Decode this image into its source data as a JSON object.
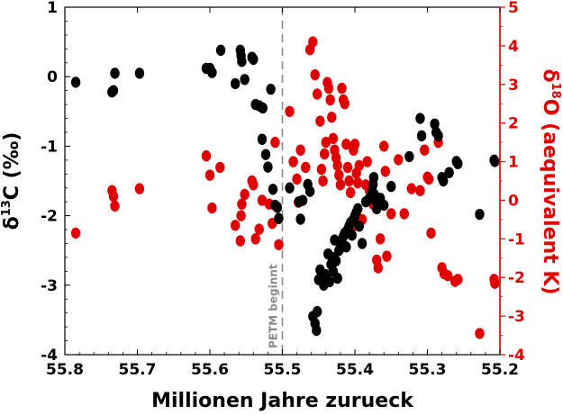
{
  "chart_data": {
    "type": "scatter",
    "xlabel": "Millionen Jahre zurueck",
    "xlim": [
      55.8,
      55.2
    ],
    "x_ticks": [
      "55.8",
      "55.7",
      "55.6",
      "55.5",
      "55.4",
      "55.3",
      "55.2"
    ],
    "y_left": {
      "label_main": "δ",
      "label_sup": "13",
      "label_rest": "C (‰)",
      "ylim": [
        -4,
        1
      ],
      "ticks": [
        "1",
        "0",
        "-1",
        "-2",
        "-3",
        "-4"
      ],
      "color": "#000000"
    },
    "y_right": {
      "label_main": "δ",
      "label_sup": "18",
      "label_rest": "O (aequivalent K)",
      "ylim": [
        -4,
        5
      ],
      "ticks": [
        "5",
        "4",
        "3",
        "2",
        "1",
        "0",
        "-1",
        "-2",
        "-3",
        "-4"
      ],
      "color": "#e00000"
    },
    "annotation": {
      "text": "PETM beginnt",
      "x": 55.5
    },
    "grid": false,
    "series": [
      {
        "axis": "left",
        "color": "#000000",
        "points": [
          [
            55.785,
            -0.08
          ],
          [
            55.735,
            -0.22
          ],
          [
            55.733,
            -0.2
          ],
          [
            55.731,
            0.05
          ],
          [
            55.697,
            0.05
          ],
          [
            55.605,
            0.12
          ],
          [
            55.6,
            0.12
          ],
          [
            55.597,
            0.06
          ],
          [
            55.585,
            0.38
          ],
          [
            55.565,
            -0.1
          ],
          [
            55.558,
            0.38
          ],
          [
            55.557,
            0.3
          ],
          [
            55.556,
            0.22
          ],
          [
            55.552,
            -0.04
          ],
          [
            55.542,
            0.28
          ],
          [
            55.54,
            0.25
          ],
          [
            55.537,
            -0.4
          ],
          [
            55.532,
            -0.42
          ],
          [
            55.528,
            -0.9
          ],
          [
            55.527,
            -0.45
          ],
          [
            55.523,
            -1.12
          ],
          [
            55.52,
            -1.3
          ],
          [
            55.516,
            -0.18
          ],
          [
            55.513,
            -1.62
          ],
          [
            55.51,
            -1.85
          ],
          [
            55.507,
            -1.88
          ],
          [
            55.505,
            -2.04
          ],
          [
            55.49,
            -1.6
          ],
          [
            55.477,
            -1.8
          ],
          [
            55.475,
            -2.05
          ],
          [
            55.472,
            -1.78
          ],
          [
            55.465,
            -1.55
          ],
          [
            55.462,
            -1.65
          ],
          [
            55.458,
            -3.45
          ],
          [
            55.455,
            -3.55
          ],
          [
            55.453,
            -3.65
          ],
          [
            55.452,
            -3.38
          ],
          [
            55.45,
            -2.92
          ],
          [
            55.448,
            -2.78
          ],
          [
            55.445,
            -2.9
          ],
          [
            55.443,
            -3.0
          ],
          [
            55.44,
            -2.85
          ],
          [
            55.437,
            -2.55
          ],
          [
            55.435,
            -2.95
          ],
          [
            55.433,
            -2.7
          ],
          [
            55.431,
            -2.6
          ],
          [
            55.43,
            -2.8
          ],
          [
            55.428,
            -2.35
          ],
          [
            55.426,
            -2.65
          ],
          [
            55.424,
            -2.9
          ],
          [
            55.422,
            -2.5
          ],
          [
            55.42,
            -2.4
          ],
          [
            55.418,
            -2.35
          ],
          [
            55.416,
            -2.3
          ],
          [
            55.414,
            -2.25
          ],
          [
            55.412,
            -2.45
          ],
          [
            55.41,
            -2.2
          ],
          [
            55.408,
            -2.15
          ],
          [
            55.406,
            -2.1
          ],
          [
            55.404,
            -2.28
          ],
          [
            55.402,
            -2.05
          ],
          [
            55.4,
            -2.0
          ],
          [
            55.398,
            -1.95
          ],
          [
            55.396,
            -1.9
          ],
          [
            55.394,
            -2.15
          ],
          [
            55.39,
            -2.4
          ],
          [
            55.385,
            -1.8
          ],
          [
            55.38,
            -1.75
          ],
          [
            55.376,
            -1.65
          ],
          [
            55.375,
            -1.55
          ],
          [
            55.374,
            -1.45
          ],
          [
            55.373,
            -1.7
          ],
          [
            55.372,
            -1.78
          ],
          [
            55.37,
            -1.9
          ],
          [
            55.365,
            -1.75
          ],
          [
            55.36,
            -1.85
          ],
          [
            55.35,
            -1.58
          ],
          [
            55.325,
            -1.15
          ],
          [
            55.31,
            -0.6
          ],
          [
            55.308,
            -0.85
          ],
          [
            55.29,
            -0.68
          ],
          [
            55.288,
            -0.8
          ],
          [
            55.285,
            -0.85
          ],
          [
            55.28,
            -1.45
          ],
          [
            55.278,
            -1.5
          ],
          [
            55.27,
            -1.38
          ],
          [
            55.26,
            -1.22
          ],
          [
            55.258,
            -1.25
          ],
          [
            55.228,
            -1.98
          ],
          [
            55.208,
            -1.2
          ],
          [
            55.207,
            -1.22
          ]
        ]
      },
      {
        "axis": "right",
        "color": "#e00000",
        "points": [
          [
            55.785,
            -0.85
          ],
          [
            55.735,
            0.25
          ],
          [
            55.733,
            0.1
          ],
          [
            55.731,
            -0.15
          ],
          [
            55.697,
            0.3
          ],
          [
            55.605,
            1.15
          ],
          [
            55.6,
            0.65
          ],
          [
            55.597,
            -0.2
          ],
          [
            55.586,
            0.85
          ],
          [
            55.565,
            -0.65
          ],
          [
            55.558,
            -1.05
          ],
          [
            55.557,
            -0.4
          ],
          [
            55.556,
            -0.1
          ],
          [
            55.552,
            0.15
          ],
          [
            55.542,
            0.5
          ],
          [
            55.54,
            0.4
          ],
          [
            55.537,
            -1.0
          ],
          [
            55.532,
            -0.75
          ],
          [
            55.528,
            0.0
          ],
          [
            55.518,
            -0.1
          ],
          [
            55.514,
            -0.6
          ],
          [
            55.51,
            1.5
          ],
          [
            55.505,
            -1.15
          ],
          [
            55.49,
            2.3
          ],
          [
            55.485,
            1.0
          ],
          [
            55.48,
            0.55
          ],
          [
            55.478,
            -0.05
          ],
          [
            55.475,
            1.3
          ],
          [
            55.468,
            0.85
          ],
          [
            55.462,
            3.9
          ],
          [
            55.458,
            4.1
          ],
          [
            55.455,
            3.25
          ],
          [
            55.452,
            2.75
          ],
          [
            55.448,
            2.05
          ],
          [
            55.446,
            0.8
          ],
          [
            55.444,
            0.5
          ],
          [
            55.442,
            1.2
          ],
          [
            55.44,
            1.5
          ],
          [
            55.438,
            3.05
          ],
          [
            55.436,
            2.9
          ],
          [
            55.434,
            2.6
          ],
          [
            55.432,
            2.15
          ],
          [
            55.43,
            1.6
          ],
          [
            55.428,
            1.3
          ],
          [
            55.426,
            1.1
          ],
          [
            55.424,
            0.9
          ],
          [
            55.422,
            0.65
          ],
          [
            55.42,
            0.4
          ],
          [
            55.418,
            2.9
          ],
          [
            55.416,
            2.6
          ],
          [
            55.414,
            2.5
          ],
          [
            55.412,
            1.45
          ],
          [
            55.41,
            0.85
          ],
          [
            55.408,
            0.5
          ],
          [
            55.406,
            0.2
          ],
          [
            55.404,
            -0.7
          ],
          [
            55.402,
            1.3
          ],
          [
            55.4,
            1.45
          ],
          [
            55.398,
            0.7
          ],
          [
            55.396,
            0.45
          ],
          [
            55.394,
            0.9
          ],
          [
            55.39,
            -0.5
          ],
          [
            55.385,
            0.4
          ],
          [
            55.383,
            1.0
          ],
          [
            55.38,
            0.25
          ],
          [
            55.375,
            -0.1
          ],
          [
            55.37,
            -1.55
          ],
          [
            55.368,
            -1.75
          ],
          [
            55.365,
            -1.0
          ],
          [
            55.36,
            1.4
          ],
          [
            55.358,
            0.75
          ],
          [
            55.356,
            -1.45
          ],
          [
            55.35,
            -0.35
          ],
          [
            55.34,
            1.05
          ],
          [
            55.332,
            -0.35
          ],
          [
            55.322,
            0.3
          ],
          [
            55.31,
            0.25
          ],
          [
            55.304,
            1.3
          ],
          [
            55.3,
            0.6
          ],
          [
            55.298,
            0.55
          ],
          [
            55.295,
            -0.85
          ],
          [
            55.285,
            1.5
          ],
          [
            55.28,
            -1.75
          ],
          [
            55.277,
            -1.9
          ],
          [
            55.272,
            -1.95
          ],
          [
            55.262,
            -2.1
          ],
          [
            55.258,
            -2.05
          ],
          [
            55.228,
            -3.45
          ],
          [
            55.208,
            -2.05
          ],
          [
            55.207,
            -2.15
          ]
        ]
      }
    ]
  }
}
